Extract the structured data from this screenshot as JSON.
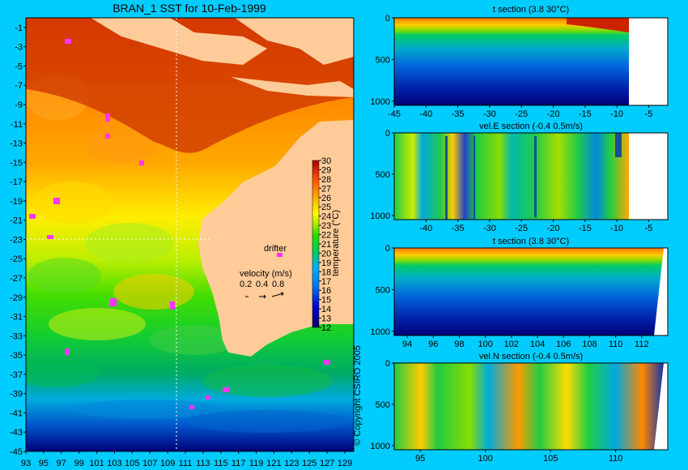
{
  "title": "BRAN_1 SST for 10-Feb-1999",
  "copyright": "© Copyright CSIRO 2005",
  "chart_data": [
    {
      "type": "heatmap",
      "name": "sst-map",
      "title": "BRAN_1 SST for 10-Feb-1999",
      "xlim": [
        93,
        130
      ],
      "ylim": [
        -45,
        0
      ],
      "x_ticks": [
        93,
        95,
        97,
        99,
        101,
        103,
        105,
        107,
        109,
        111,
        113,
        115,
        117,
        119,
        121,
        123,
        125,
        127,
        129
      ],
      "y_ticks": [
        -1,
        -3,
        -5,
        -7,
        -9,
        -11,
        -13,
        -15,
        -17,
        -19,
        -21,
        -23,
        -25,
        -27,
        -29,
        -31,
        -33,
        -35,
        -37,
        -39,
        -41,
        -43,
        -45
      ],
      "colorbar": {
        "label": "temperature (°C)",
        "min": 12,
        "max": 30,
        "ticks": [
          30,
          29,
          28,
          27,
          26,
          25,
          24,
          23,
          22,
          21,
          20,
          19,
          18,
          17,
          16,
          15,
          14,
          13,
          12
        ]
      },
      "annotations": {
        "drifter": "drifter",
        "velocity_title": "velocity (m/s)",
        "velocity_scale": [
          0.2,
          0.4,
          0.8
        ]
      },
      "section_lines": {
        "lon": 110,
        "lat": -23
      }
    },
    {
      "type": "heatmap",
      "name": "t-section-lat",
      "title": "t section (3.8      30°C)",
      "xlim": [
        -45,
        -2
      ],
      "ylim": [
        1050,
        0
      ],
      "x_ticks": [
        -45,
        -40,
        -35,
        -30,
        -25,
        -20,
        -15,
        -10,
        -5
      ],
      "y_ticks": [
        0,
        500,
        1000
      ]
    },
    {
      "type": "heatmap",
      "name": "velE-section",
      "title": "vel.E section (-0.4      0.5m/s)",
      "xlim": [
        -45,
        -2
      ],
      "ylim": [
        1050,
        0
      ],
      "x_ticks": [
        -40,
        -35,
        -30,
        -25,
        -20,
        -15,
        -10,
        -5
      ],
      "y_ticks": [
        0,
        500,
        1000
      ]
    },
    {
      "type": "heatmap",
      "name": "t-section-lon",
      "title": "t section (3.8      30°C)",
      "xlim": [
        93,
        114
      ],
      "ylim": [
        1050,
        0
      ],
      "x_ticks": [
        94,
        96,
        98,
        100,
        102,
        104,
        106,
        108,
        110,
        112
      ],
      "y_ticks": [
        0,
        500,
        1000
      ]
    },
    {
      "type": "heatmap",
      "name": "velN-section",
      "title": "vel.N section (-0.4      0.5m/s)",
      "xlim": [
        93,
        114
      ],
      "ylim": [
        1050,
        0
      ],
      "x_ticks": [
        95,
        100,
        105,
        110
      ],
      "y_ticks": [
        0,
        500,
        1000
      ]
    }
  ]
}
